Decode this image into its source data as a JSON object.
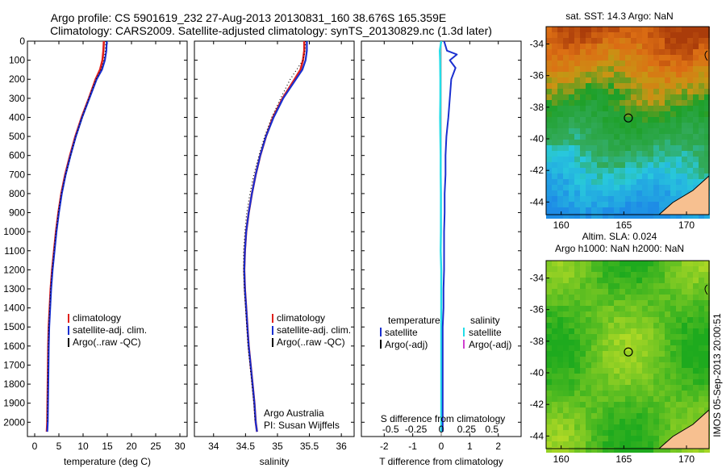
{
  "title_line1": "Argo profile: CS 5901619_232 27-Aug-2013 20130831_160 38.676S 165.359E",
  "title_line2": "Climatology: CARS2009. Satellite-adjusted climatology: synTS_20130829.nc (1.3d later)",
  "side_stamp": "IMOS 05-Sep-2013 20:00:51",
  "colors": {
    "climatology": "#e0201c",
    "satellite": "#1a2fd0",
    "argo": "#000000",
    "sal_satellite": "#22dde8",
    "sal_argo": "#d040d0",
    "land": "#f7c090"
  },
  "chart_data": [
    {
      "type": "line",
      "xlabel": "temperature (deg C)",
      "xlim": [
        -1.5,
        31.5
      ],
      "xticks": [
        "0",
        "5",
        "10",
        "15",
        "20",
        "25",
        "30"
      ],
      "xtick_values": [
        0,
        5,
        10,
        15,
        20,
        25,
        30
      ],
      "ylim": [
        2075,
        0
      ],
      "yticks": [
        "0",
        "100",
        "200",
        "300",
        "400",
        "500",
        "600",
        "700",
        "800",
        "900",
        "1000",
        "1100",
        "1200",
        "1300",
        "1400",
        "1500",
        "1600",
        "1700",
        "1800",
        "1900",
        "2000"
      ],
      "legend": [
        "climatology",
        "satellite-adj. clim.",
        "Argo(..raw -QC)"
      ],
      "series": [
        {
          "name": "climatology",
          "x": [
            14.3,
            14.2,
            14.0,
            13.5,
            12.6,
            11.2,
            9.7,
            8.4,
            7.3,
            6.3,
            5.5,
            4.9,
            4.4,
            4.0,
            3.6,
            3.3,
            3.1,
            2.9,
            2.8,
            2.7,
            2.6,
            2.5
          ],
          "y": [
            0,
            50,
            100,
            150,
            200,
            300,
            400,
            500,
            600,
            700,
            800,
            900,
            1000,
            1100,
            1200,
            1300,
            1400,
            1500,
            1600,
            1800,
            2000,
            2050
          ]
        },
        {
          "name": "satellite-adj. clim.",
          "x": [
            14.9,
            14.8,
            14.5,
            13.9,
            12.8,
            11.3,
            9.8,
            8.5,
            7.4,
            6.4,
            5.6,
            5.0,
            4.5,
            4.1,
            3.7,
            3.4,
            3.2,
            3.0,
            2.9,
            2.8,
            2.7,
            2.6
          ],
          "y": [
            0,
            50,
            100,
            150,
            200,
            300,
            400,
            500,
            600,
            700,
            800,
            900,
            1000,
            1100,
            1200,
            1300,
            1400,
            1500,
            1600,
            1800,
            2000,
            2050
          ]
        },
        {
          "name": "Argo(..raw -QC)",
          "x": [
            14.7,
            14.6,
            14.3,
            13.7,
            12.7,
            11.2,
            9.8,
            8.5,
            7.4,
            6.4,
            5.5,
            4.9,
            4.4,
            4.0,
            3.6,
            3.3,
            3.1,
            2.9,
            2.8,
            2.7,
            2.6
          ],
          "y": [
            0,
            50,
            100,
            150,
            200,
            300,
            400,
            500,
            600,
            700,
            800,
            900,
            1000,
            1100,
            1200,
            1300,
            1400,
            1500,
            1600,
            1800,
            2000
          ]
        }
      ]
    },
    {
      "type": "line",
      "xlabel": "salinity",
      "xlim": [
        33.7,
        36.2
      ],
      "xticks": [
        "34",
        "34.5",
        "35",
        "35.5",
        "36"
      ],
      "xtick_values": [
        34,
        34.5,
        35,
        35.5,
        36
      ],
      "ylim": [
        2075,
        0
      ],
      "legend": [
        "climatology",
        "satellite-adj. clim.",
        "Argo(..raw -QC)"
      ],
      "annotation": [
        "Argo Australia",
        "PI: Susan Wijffels"
      ],
      "series": [
        {
          "name": "climatology",
          "x": [
            35.42,
            35.42,
            35.4,
            35.36,
            35.27,
            35.08,
            34.93,
            34.82,
            34.73,
            34.66,
            34.6,
            34.55,
            34.51,
            34.49,
            34.48,
            34.49,
            34.51,
            34.53,
            34.55,
            34.58,
            34.61,
            34.64,
            34.66,
            34.68
          ],
          "y": [
            0,
            50,
            100,
            150,
            200,
            300,
            400,
            500,
            600,
            700,
            800,
            900,
            1000,
            1100,
            1200,
            1300,
            1400,
            1500,
            1600,
            1700,
            1800,
            1900,
            2000,
            2050
          ]
        },
        {
          "name": "satellite-adj. clim.",
          "x": [
            35.46,
            35.46,
            35.44,
            35.39,
            35.29,
            35.09,
            34.94,
            34.82,
            34.73,
            34.66,
            34.6,
            34.55,
            34.51,
            34.49,
            34.48,
            34.49,
            34.51,
            34.53,
            34.55,
            34.58,
            34.61,
            34.64,
            34.66,
            34.68
          ],
          "y": [
            0,
            50,
            100,
            150,
            200,
            300,
            400,
            500,
            600,
            700,
            800,
            900,
            1000,
            1100,
            1200,
            1300,
            1400,
            1500,
            1600,
            1700,
            1800,
            1900,
            2000,
            2050
          ]
        },
        {
          "name": "Argo(..raw -QC)",
          "x": [
            35.44,
            35.43,
            35.4,
            35.3,
            35.2,
            35.05,
            34.91,
            34.8,
            34.71,
            34.63,
            34.57,
            34.52,
            34.49,
            34.47,
            34.47,
            34.48,
            34.5,
            34.52,
            34.54,
            34.57,
            34.6,
            34.63,
            34.65
          ],
          "y": [
            0,
            50,
            100,
            150,
            200,
            300,
            400,
            500,
            600,
            700,
            800,
            900,
            1000,
            1100,
            1200,
            1300,
            1400,
            1500,
            1600,
            1700,
            1800,
            1900,
            2000
          ]
        }
      ]
    },
    {
      "type": "line",
      "xlabel": "T difference from climatology",
      "xlabel2": "S difference from climatology",
      "xlim": [
        -2.8,
        2.8
      ],
      "xticks": [
        "-2",
        "-1",
        "0",
        "1",
        "2"
      ],
      "xtick_values": [
        -2,
        -1,
        0,
        1,
        2
      ],
      "xticks2": [
        "-0.5",
        "-0.25",
        "0",
        "0.25",
        "0.5"
      ],
      "xtick2_values": [
        -0.5,
        -0.25,
        0,
        0.25,
        0.5
      ],
      "ylim": [
        2075,
        0
      ],
      "legend_temperature": [
        "temperature",
        "satellite",
        "Argo(-adj)"
      ],
      "legend_salinity": [
        "salinity",
        "satellite",
        "Argo(-adj)"
      ],
      "series": [
        {
          "name": "temperature satellite",
          "x": [
            0.1,
            0.2,
            0.55,
            0.3,
            0.5,
            0.35,
            0.3,
            0.25,
            0.18,
            0.15,
            0.15,
            0.12,
            0.12,
            0.1,
            0.1,
            0.1,
            0.08,
            0.08,
            0.05,
            0.05,
            0.05,
            0.05,
            0.05
          ],
          "y": [
            0,
            50,
            70,
            100,
            140,
            200,
            300,
            400,
            500,
            600,
            700,
            800,
            900,
            1000,
            1100,
            1200,
            1300,
            1400,
            1500,
            1600,
            1800,
            2000,
            2050
          ]
        },
        {
          "name": "salinity satellite",
          "x": [
            0.0,
            -0.05,
            -0.04,
            -0.03,
            -0.03,
            -0.04,
            -0.03,
            -0.02,
            -0.02,
            -0.01,
            -0.01,
            -0.01,
            -0.02,
            0.0,
            0.0,
            0.0,
            0.0,
            0.0,
            0.0
          ],
          "y": [
            0,
            50,
            100,
            200,
            300,
            400,
            500,
            600,
            700,
            800,
            900,
            1000,
            1100,
            1200,
            1400,
            1600,
            1800,
            2000,
            2050
          ]
        }
      ]
    }
  ],
  "maps": [
    {
      "title_lines": [
        "sat. SST: 14.3 Argo: NaN"
      ],
      "xticks": [
        "160",
        "165",
        "170"
      ],
      "xtick_values": [
        160,
        165,
        170
      ],
      "yticks": [
        "-34",
        "-36",
        "-38",
        "-40",
        "-42",
        "-44"
      ],
      "ytick_values": [
        -34,
        -36,
        -38,
        -40,
        -42,
        -44
      ],
      "lon_range": [
        158.8,
        171.8
      ],
      "lat_range": [
        -44.8,
        -32.9
      ],
      "marker": {
        "lon": 165.36,
        "lat": -38.68
      },
      "palette": "sst"
    },
    {
      "title_lines": [
        "Altim. SLA: 0.024",
        "Argo h1000: NaN h2000: NaN"
      ],
      "xticks": [
        "160",
        "165",
        "170"
      ],
      "xtick_values": [
        160,
        165,
        170
      ],
      "yticks": [
        "-34",
        "-36",
        "-38",
        "-40",
        "-42",
        "-44"
      ],
      "ytick_values": [
        -34,
        -36,
        -38,
        -40,
        -42,
        -44
      ],
      "lon_range": [
        158.8,
        171.8
      ],
      "lat_range": [
        -44.8,
        -32.9
      ],
      "marker": {
        "lon": 165.36,
        "lat": -38.68
      },
      "palette": "sla"
    }
  ]
}
